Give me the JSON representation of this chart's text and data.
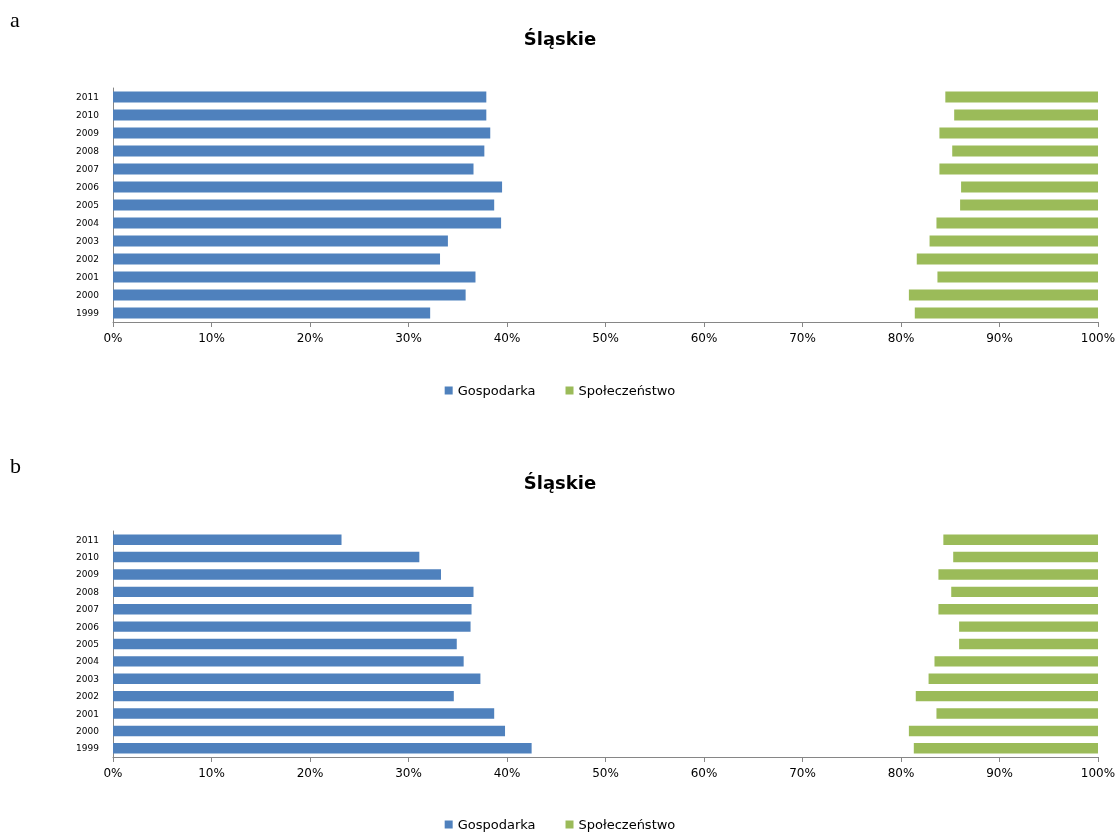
{
  "chart_data": [
    {
      "type": "bar",
      "orientation": "horizontal",
      "title": "Śląskie",
      "annotations": [
        "a"
      ],
      "categories": [
        "2011",
        "2010",
        "2009",
        "2008",
        "2007",
        "2006",
        "2005",
        "2004",
        "2003",
        "2002",
        "2001",
        "2000",
        "1999"
      ],
      "series": [
        {
          "name": "Gospodarka",
          "color": "#4f81bd",
          "base": [
            0,
            0,
            0,
            0,
            0,
            0,
            0,
            0,
            0,
            0,
            0,
            0,
            0
          ],
          "values": [
            37.9,
            37.9,
            38.3,
            37.7,
            36.6,
            39.5,
            38.7,
            39.4,
            34.0,
            33.2,
            36.8,
            35.8,
            32.2
          ]
        },
        {
          "name": "Społeczeństwo",
          "color": "#9bbb59",
          "base": [
            84.5,
            85.4,
            83.9,
            85.2,
            83.9,
            86.1,
            86.0,
            83.6,
            82.9,
            81.6,
            83.7,
            80.8,
            81.4
          ],
          "values": [
            15.5,
            14.6,
            16.1,
            14.8,
            16.1,
            13.9,
            14.0,
            16.4,
            17.1,
            18.4,
            16.3,
            19.2,
            18.6
          ]
        }
      ],
      "xlim": [
        0,
        100
      ],
      "xticks": [
        {
          "value": 0,
          "label": "0%"
        },
        {
          "value": 10,
          "label": "10%"
        },
        {
          "value": 20,
          "label": "20%"
        },
        {
          "value": 30,
          "label": "30%"
        },
        {
          "value": 40,
          "label": "40%"
        },
        {
          "value": 50,
          "label": "50%"
        },
        {
          "value": 60,
          "label": "60%"
        },
        {
          "value": 70,
          "label": "70%"
        },
        {
          "value": 80,
          "label": "80%"
        },
        {
          "value": 90,
          "label": "90%"
        },
        {
          "value": 100,
          "label": "100%"
        }
      ],
      "grid": false,
      "legend": "bottom"
    },
    {
      "type": "bar",
      "orientation": "horizontal",
      "title": "Śląskie",
      "annotations": [
        "b"
      ],
      "categories": [
        "2011",
        "2010",
        "2009",
        "2008",
        "2007",
        "2006",
        "2005",
        "2004",
        "2003",
        "2002",
        "2001",
        "2000",
        "1999"
      ],
      "series": [
        {
          "name": "Gospodarka",
          "color": "#4f81bd",
          "base": [
            0,
            0,
            0,
            0,
            0,
            0,
            0,
            0,
            0,
            0,
            0,
            0,
            0
          ],
          "values": [
            23.2,
            31.1,
            33.3,
            36.6,
            36.4,
            36.3,
            34.9,
            35.6,
            37.3,
            34.6,
            38.7,
            39.8,
            42.5
          ]
        },
        {
          "name": "Społeczeństwo",
          "color": "#9bbb59",
          "base": [
            84.3,
            85.3,
            83.8,
            85.1,
            83.8,
            85.9,
            85.9,
            83.4,
            82.8,
            81.5,
            83.6,
            80.8,
            81.3
          ],
          "values": [
            15.7,
            14.7,
            16.2,
            14.9,
            16.2,
            14.1,
            14.1,
            16.6,
            17.2,
            18.5,
            16.4,
            19.2,
            18.7
          ]
        }
      ],
      "xlim": [
        0,
        100
      ],
      "xticks": [
        {
          "value": 0,
          "label": "0%"
        },
        {
          "value": 10,
          "label": "10%"
        },
        {
          "value": 20,
          "label": "20%"
        },
        {
          "value": 30,
          "label": "30%"
        },
        {
          "value": 40,
          "label": "40%"
        },
        {
          "value": 50,
          "label": "50%"
        },
        {
          "value": 60,
          "label": "60%"
        },
        {
          "value": 70,
          "label": "70%"
        },
        {
          "value": 80,
          "label": "80%"
        },
        {
          "value": 90,
          "label": "90%"
        },
        {
          "value": 100,
          "label": "100%"
        }
      ],
      "grid": false,
      "legend": "bottom"
    }
  ]
}
